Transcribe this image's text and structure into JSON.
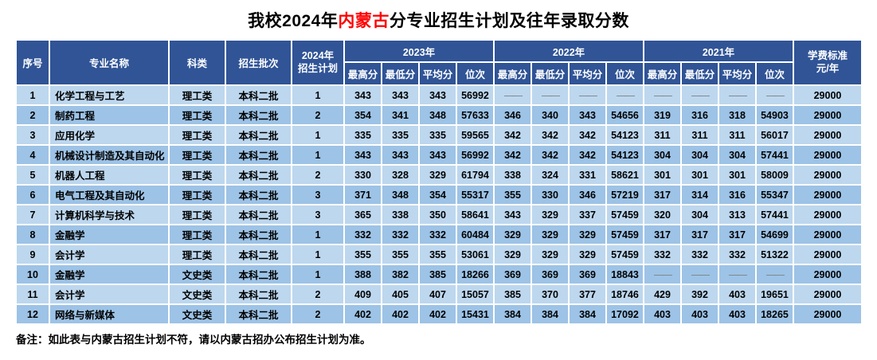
{
  "title": {
    "prefix": "我校2024年",
    "highlight": "内蒙古",
    "suffix": "分专业招生计划及往年录取分数"
  },
  "colors": {
    "header_bg": "#305496",
    "row_odd": "#BDD7EE",
    "row_even": "#9DC3E6",
    "title_highlight": "#FF0000",
    "dash": "#7F7F7F"
  },
  "table": {
    "headers": {
      "index": "序号",
      "major": "专业名称",
      "category": "科类",
      "batch": "招生批次",
      "plan": "2024年\n招生计划",
      "year_groups": [
        "2023年",
        "2022年",
        "2021年"
      ],
      "score_cols": [
        "最高分",
        "最低分",
        "平均分",
        "位次"
      ],
      "tuition": "学费标准\n元/年"
    },
    "rows": [
      {
        "no": "1",
        "major": "化学工程与工艺",
        "category": "理工类",
        "batch": "本科二批",
        "plan": "1",
        "y2023": [
          "343",
          "343",
          "343",
          "56992"
        ],
        "y2022": [
          "——",
          "——",
          "——",
          "——"
        ],
        "y2021": [
          "——",
          "——",
          "——",
          "——"
        ],
        "tuition": "29000"
      },
      {
        "no": "2",
        "major": "制药工程",
        "category": "理工类",
        "batch": "本科二批",
        "plan": "2",
        "y2023": [
          "354",
          "341",
          "348",
          "57633"
        ],
        "y2022": [
          "346",
          "340",
          "343",
          "54656"
        ],
        "y2021": [
          "319",
          "316",
          "318",
          "54903"
        ],
        "tuition": "29000"
      },
      {
        "no": "3",
        "major": "应用化学",
        "category": "理工类",
        "batch": "本科二批",
        "plan": "1",
        "y2023": [
          "335",
          "335",
          "335",
          "59565"
        ],
        "y2022": [
          "342",
          "342",
          "342",
          "54123"
        ],
        "y2021": [
          "311",
          "311",
          "311",
          "56017"
        ],
        "tuition": "29000"
      },
      {
        "no": "4",
        "major": "机械设计制造及其自动化",
        "category": "理工类",
        "batch": "本科二批",
        "plan": "1",
        "y2023": [
          "343",
          "343",
          "343",
          "56992"
        ],
        "y2022": [
          "342",
          "342",
          "342",
          "54123"
        ],
        "y2021": [
          "304",
          "304",
          "304",
          "57441"
        ],
        "tuition": "29000"
      },
      {
        "no": "5",
        "major": "机器人工程",
        "category": "理工类",
        "batch": "本科二批",
        "plan": "2",
        "y2023": [
          "330",
          "328",
          "329",
          "61794"
        ],
        "y2022": [
          "338",
          "324",
          "331",
          "58621"
        ],
        "y2021": [
          "301",
          "301",
          "301",
          "58009"
        ],
        "tuition": "29000"
      },
      {
        "no": "6",
        "major": "电气工程及其自动化",
        "category": "理工类",
        "batch": "本科二批",
        "plan": "3",
        "y2023": [
          "371",
          "348",
          "354",
          "55317"
        ],
        "y2022": [
          "355",
          "330",
          "346",
          "57219"
        ],
        "y2021": [
          "317",
          "314",
          "316",
          "55347"
        ],
        "tuition": "29000"
      },
      {
        "no": "7",
        "major": "计算机科学与技术",
        "category": "理工类",
        "batch": "本科二批",
        "plan": "3",
        "y2023": [
          "365",
          "338",
          "350",
          "58641"
        ],
        "y2022": [
          "343",
          "329",
          "337",
          "57459"
        ],
        "y2021": [
          "320",
          "304",
          "313",
          "57441"
        ],
        "tuition": "29000"
      },
      {
        "no": "8",
        "major": "金融学",
        "category": "理工类",
        "batch": "本科二批",
        "plan": "1",
        "y2023": [
          "332",
          "332",
          "332",
          "60484"
        ],
        "y2022": [
          "329",
          "329",
          "329",
          "57459"
        ],
        "y2021": [
          "317",
          "317",
          "317",
          "54699"
        ],
        "tuition": "29000"
      },
      {
        "no": "9",
        "major": "会计学",
        "category": "理工类",
        "batch": "本科二批",
        "plan": "1",
        "y2023": [
          "355",
          "355",
          "355",
          "53061"
        ],
        "y2022": [
          "329",
          "329",
          "329",
          "57459"
        ],
        "y2021": [
          "332",
          "332",
          "332",
          "51322"
        ],
        "tuition": "29000"
      },
      {
        "no": "10",
        "major": "金融学",
        "category": "文史类",
        "batch": "本科二批",
        "plan": "1",
        "y2023": [
          "388",
          "382",
          "385",
          "18266"
        ],
        "y2022": [
          "369",
          "369",
          "369",
          "18843"
        ],
        "y2021": [
          "——",
          "——",
          "——",
          "——"
        ],
        "tuition": "29000"
      },
      {
        "no": "11",
        "major": "会计学",
        "category": "文史类",
        "batch": "本科二批",
        "plan": "2",
        "y2023": [
          "409",
          "405",
          "407",
          "15057"
        ],
        "y2022": [
          "385",
          "370",
          "377",
          "18746"
        ],
        "y2021": [
          "429",
          "392",
          "403",
          "19651"
        ],
        "tuition": "29000"
      },
      {
        "no": "12",
        "major": "网络与新媒体",
        "category": "文史类",
        "batch": "本科二批",
        "plan": "2",
        "y2023": [
          "402",
          "402",
          "402",
          "15431"
        ],
        "y2022": [
          "384",
          "384",
          "384",
          "17092"
        ],
        "y2021": [
          "403",
          "403",
          "403",
          "18265"
        ],
        "tuition": "29000"
      }
    ]
  },
  "note": "备注：如此表与内蒙古招生计划不符，请以内蒙古招办公布招生计划为准。"
}
